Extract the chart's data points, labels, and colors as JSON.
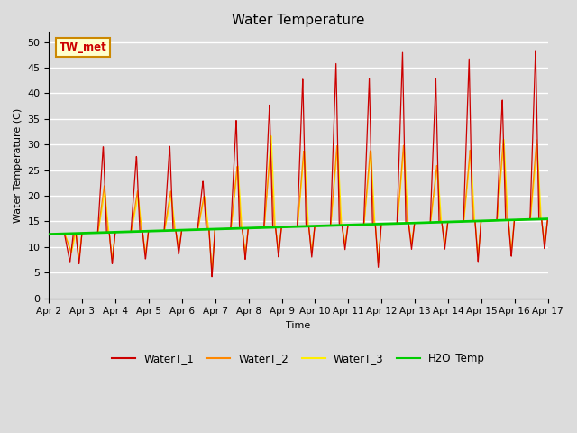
{
  "title": "Water Temperature",
  "ylabel": "Water Temperature (C)",
  "xlabel": "Time",
  "annotation": "TW_met",
  "ylim": [
    0,
    52
  ],
  "yticks": [
    0,
    5,
    10,
    15,
    20,
    25,
    30,
    35,
    40,
    45,
    50
  ],
  "fig_bg": "#dcdcdc",
  "plot_bg": "#dcdcdc",
  "line_colors": {
    "WaterT_1": "#cc0000",
    "WaterT_2": "#ff8800",
    "WaterT_3": "#ffee00",
    "H2O_Temp": "#00cc00"
  },
  "xtick_labels": [
    "Apr 2",
    "Apr 3",
    "Apr 4",
    "Apr 5",
    "Apr 6",
    "Apr 7",
    "Apr 8",
    "Apr 9",
    "Apr 10",
    "Apr 11",
    "Apr 12",
    "Apr 13",
    "Apr 14",
    "Apr 15",
    "Apr 16",
    "Apr 17"
  ],
  "num_days": 15,
  "spd": 144
}
